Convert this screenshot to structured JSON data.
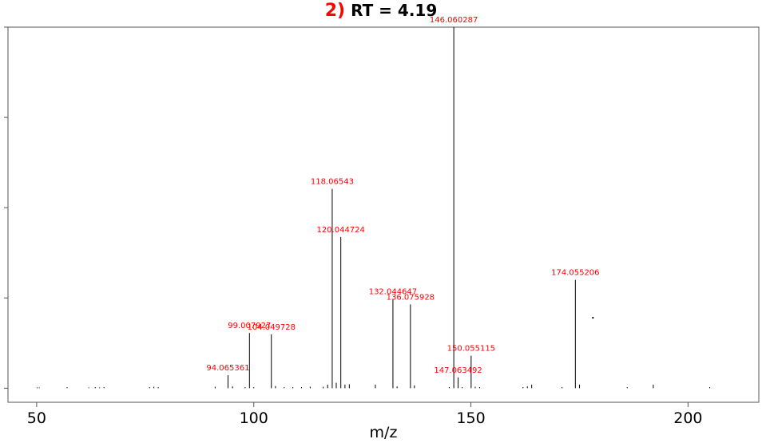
{
  "title": {
    "prefix": "2)",
    "text": "RT = 4.19"
  },
  "chart_data": {
    "type": "bar",
    "subtype": "mass-spectrum-stick",
    "xlabel": "m/z",
    "ylabel": "",
    "xlim": [
      43.4,
      216.3
    ],
    "ylim": [
      -3.9,
      100
    ],
    "x_ticks": [
      50,
      100,
      150,
      200
    ],
    "y_ticks": [
      0,
      25,
      50,
      75,
      100
    ],
    "y_tick_labels_visible": false,
    "grid": false,
    "legend": "none",
    "label_color": "#ff0000",
    "peak_color": "#000000",
    "labeled_peaks": [
      {
        "mz": 94.065361,
        "label": "94.065361",
        "intensity": 3.6
      },
      {
        "mz": 99.007927,
        "label": "99.007927",
        "intensity": 15.3
      },
      {
        "mz": 104.049728,
        "label": "104.049728",
        "intensity": 14.9
      },
      {
        "mz": 118.06543,
        "label": "118.06543",
        "intensity": 55.2
      },
      {
        "mz": 120.044724,
        "label": "120.044724",
        "intensity": 41.9
      },
      {
        "mz": 132.044647,
        "label": "132.044647",
        "intensity": 24.7
      },
      {
        "mz": 136.075928,
        "label": "136.075928",
        "intensity": 23.2
      },
      {
        "mz": 146.060287,
        "label": "146.060287",
        "intensity": 100
      },
      {
        "mz": 147.063492,
        "label": "147.063492",
        "intensity": 3.0
      },
      {
        "mz": 150.055115,
        "label": "150.055115",
        "intensity": 9.0
      },
      {
        "mz": 174.055206,
        "label": "174.055206",
        "intensity": 30.0
      }
    ],
    "minor_peaks": [
      {
        "mz": 50.1,
        "intensity": 0.2
      },
      {
        "mz": 50.6,
        "intensity": 0.2
      },
      {
        "mz": 57.0,
        "intensity": 0.3
      },
      {
        "mz": 62.0,
        "intensity": 0.2
      },
      {
        "mz": 63.5,
        "intensity": 0.3
      },
      {
        "mz": 64.5,
        "intensity": 0.2
      },
      {
        "mz": 65.5,
        "intensity": 0.3
      },
      {
        "mz": 76.0,
        "intensity": 0.3
      },
      {
        "mz": 77.0,
        "intensity": 0.4
      },
      {
        "mz": 78.0,
        "intensity": 0.3
      },
      {
        "mz": 91.1,
        "intensity": 0.4
      },
      {
        "mz": 95.1,
        "intensity": 0.5
      },
      {
        "mz": 98.0,
        "intensity": 0.3
      },
      {
        "mz": 100.0,
        "intensity": 0.3
      },
      {
        "mz": 105.0,
        "intensity": 0.6
      },
      {
        "mz": 107.0,
        "intensity": 0.3
      },
      {
        "mz": 109.0,
        "intensity": 0.3
      },
      {
        "mz": 111.0,
        "intensity": 0.3
      },
      {
        "mz": 113.0,
        "intensity": 0.4
      },
      {
        "mz": 116.0,
        "intensity": 0.4
      },
      {
        "mz": 117.0,
        "intensity": 1.0
      },
      {
        "mz": 119.0,
        "intensity": 1.5
      },
      {
        "mz": 121.0,
        "intensity": 1.0
      },
      {
        "mz": 122.0,
        "intensity": 1.1
      },
      {
        "mz": 128.0,
        "intensity": 1.0
      },
      {
        "mz": 133.0,
        "intensity": 0.5
      },
      {
        "mz": 137.0,
        "intensity": 0.8
      },
      {
        "mz": 145.0,
        "intensity": 0.3
      },
      {
        "mz": 148.0,
        "intensity": 0.3
      },
      {
        "mz": 151.0,
        "intensity": 0.4
      },
      {
        "mz": 152.0,
        "intensity": 0.3
      },
      {
        "mz": 162.0,
        "intensity": 0.3
      },
      {
        "mz": 163.0,
        "intensity": 0.5
      },
      {
        "mz": 164.0,
        "intensity": 1.0
      },
      {
        "mz": 171.0,
        "intensity": 0.3
      },
      {
        "mz": 175.0,
        "intensity": 1.0
      },
      {
        "mz": 186.0,
        "intensity": 0.3
      },
      {
        "mz": 192.0,
        "intensity": 1.0
      },
      {
        "mz": 205.0,
        "intensity": 0.3
      }
    ],
    "annotations": [
      {
        "type": "dot",
        "mz": 178.1,
        "intensity": 19.5
      }
    ]
  }
}
